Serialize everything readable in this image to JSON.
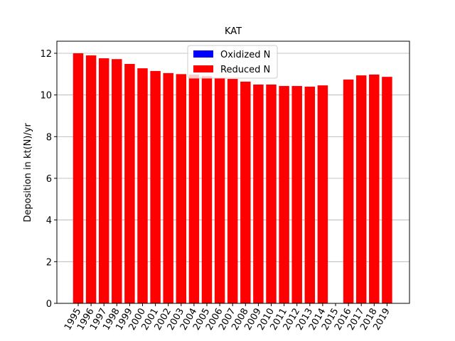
{
  "chart_data": {
    "type": "stacked_bar",
    "title": "KAT",
    "y_label": "Deposition in kt(N)/yr",
    "categories": [
      "1995",
      "1996",
      "1997",
      "1998",
      "1999",
      "2000",
      "2001",
      "2002",
      "2003",
      "2004",
      "2005",
      "2006",
      "2007",
      "2008",
      "2009",
      "2010",
      "2011",
      "2012",
      "2013",
      "2014",
      "2015",
      "2016",
      "2017",
      "2018",
      "2019"
    ],
    "series": [
      {
        "name": "Oxidized N",
        "color": "#0000ff",
        "values": [
          0,
          0,
          0,
          0,
          0,
          0,
          0,
          0,
          0,
          0,
          0,
          0,
          0,
          0,
          0,
          0,
          0,
          0,
          0,
          0,
          null,
          0,
          0,
          0,
          0
        ]
      },
      {
        "name": "Reduced N",
        "color": "#ff0000",
        "values": [
          12.0,
          11.9,
          11.76,
          11.72,
          11.49,
          11.28,
          11.15,
          11.05,
          11.0,
          10.98,
          10.9,
          10.8,
          10.77,
          10.64,
          10.5,
          10.5,
          10.43,
          10.43,
          10.4,
          10.46,
          null,
          10.74,
          10.94,
          10.98,
          10.87
        ]
      }
    ],
    "ylim": [
      0,
      12.58
    ],
    "yticks": [
      0,
      2,
      4,
      6,
      8,
      10,
      12
    ],
    "grid": true,
    "legend": "upper center"
  }
}
